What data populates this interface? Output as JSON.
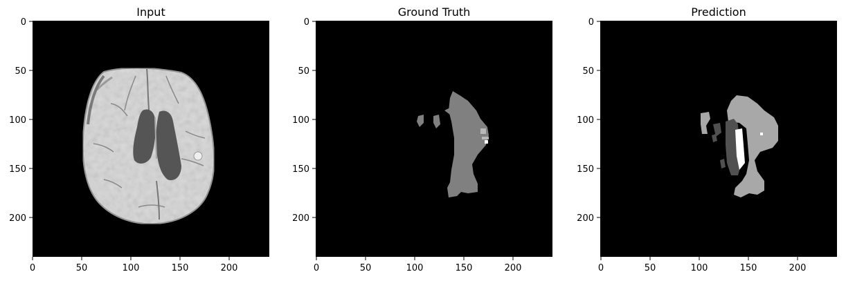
{
  "panels": [
    {
      "title": "Input",
      "x_ticks": [
        "0",
        "50",
        "100",
        "150",
        "200"
      ],
      "y_ticks": [
        "0",
        "50",
        "100",
        "150",
        "200"
      ]
    },
    {
      "title": "Ground Truth",
      "x_ticks": [
        "0",
        "50",
        "100",
        "150",
        "200"
      ],
      "y_ticks": [
        "0",
        "50",
        "100",
        "150",
        "200"
      ]
    },
    {
      "title": "Prediction",
      "x_ticks": [
        "0",
        "50",
        "100",
        "150",
        "200"
      ],
      "y_ticks": [
        "0",
        "50",
        "100",
        "150",
        "200"
      ]
    }
  ],
  "colors": {
    "background": "#ffffff",
    "image_background": "#000000",
    "brain_tissue": "#d8d8d8",
    "ventricle": "#555555",
    "label_gray": "#808080",
    "label_light": "#a8a8a8",
    "label_dark": "#505050",
    "label_white": "#ffffff"
  }
}
